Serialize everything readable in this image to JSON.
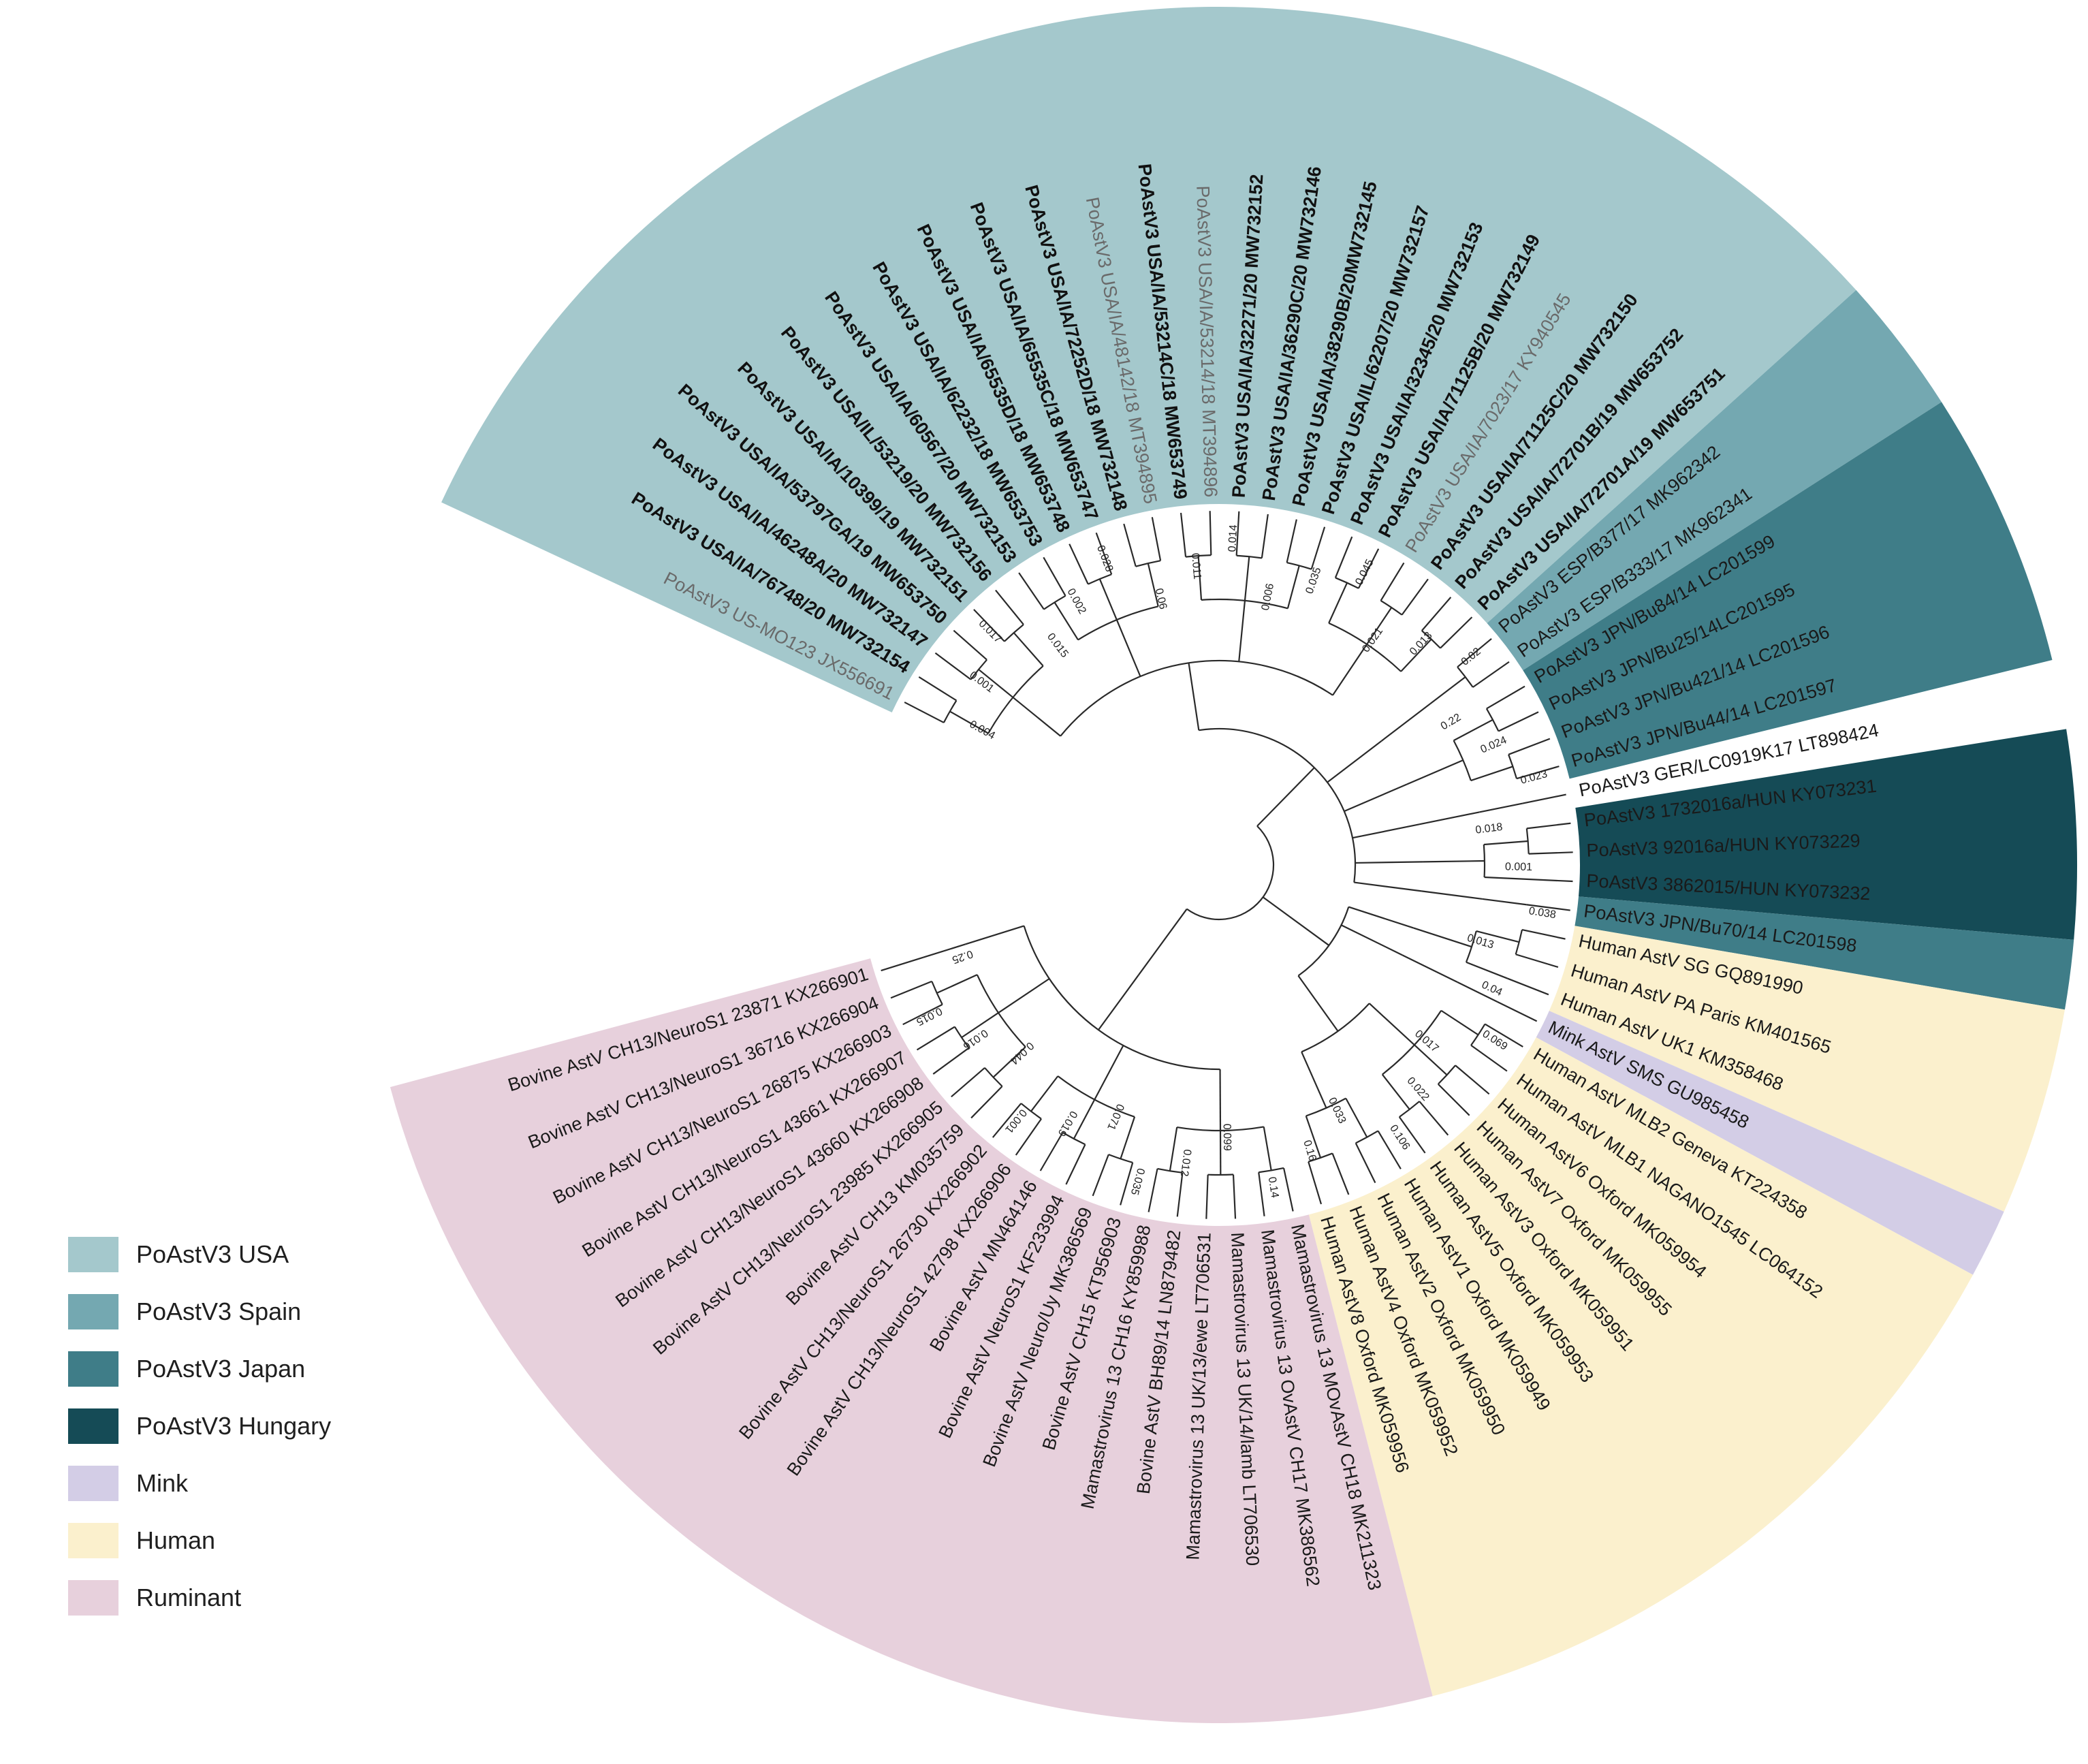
{
  "figure": {
    "type": "circular phylogenetic tree",
    "clades": [
      {
        "key": "usa",
        "label": "PoAstV3 USA",
        "color": "#a4c8cc"
      },
      {
        "key": "spain",
        "label": "PoAstV3 Spain",
        "color": "#74a8b1"
      },
      {
        "key": "japan",
        "label": "PoAstV3 Japan",
        "color": "#3f7d88"
      },
      {
        "key": "hungary",
        "label": "PoAstV3 Hungary",
        "color": "#154b56"
      },
      {
        "key": "mink",
        "label": "Mink",
        "color": "#d3cde6"
      },
      {
        "key": "human",
        "label": "Human",
        "color": "#fbf0cd"
      },
      {
        "key": "ruminant",
        "label": "Ruminant",
        "color": "#e7d0dc"
      }
    ],
    "taxa": [
      {
        "name": "PoAstV3 US-MO123 JX556691",
        "clade": "usa",
        "style": "grey"
      },
      {
        "name": "PoAstV3 USA/IA/76748/20 MW732154",
        "clade": "usa",
        "style": "bold"
      },
      {
        "name": "PoAstV3 USA/IA/46248A/20 MW732147",
        "clade": "usa",
        "style": "bold"
      },
      {
        "name": "PoAstV3 USA/IA/53797GA/19 MW653750",
        "clade": "usa",
        "style": "bold"
      },
      {
        "name": "PoAstV3 USA/IA/10399/19 MW732151",
        "clade": "usa",
        "style": "bold"
      },
      {
        "name": "PoAstV3 USA/IL/53219/20 MW732156",
        "clade": "usa",
        "style": "bold"
      },
      {
        "name": "PoAstV3 USA/IA/60567/20 MW732153",
        "clade": "usa",
        "style": "bold"
      },
      {
        "name": "PoAstV3 USA/IA/62232/18 MW653753",
        "clade": "usa",
        "style": "bold"
      },
      {
        "name": "PoAstV3 USA/IA/65535D/18 MW653748",
        "clade": "usa",
        "style": "bold"
      },
      {
        "name": "PoAstV3 USA/IA/65535C/18 MW653747",
        "clade": "usa",
        "style": "bold"
      },
      {
        "name": "PoAstV3 USA/IA/72252D/18 MW732148",
        "clade": "usa",
        "style": "bold"
      },
      {
        "name": "PoAstV3 USA/IA/48142/18 MT394895",
        "clade": "usa",
        "style": "grey"
      },
      {
        "name": "PoAstV3 USA/IA/53214C/18 MW653749",
        "clade": "usa",
        "style": "bold"
      },
      {
        "name": "PoAstV3 USA/IA/53214/18 MT394896",
        "clade": "usa",
        "style": "grey"
      },
      {
        "name": "PoAstV3 USA/IA/32271/20 MW732152",
        "clade": "usa",
        "style": "bold"
      },
      {
        "name": "PoAstV3 USA/IA/36290C/20 MW732146",
        "clade": "usa",
        "style": "bold"
      },
      {
        "name": "PoAstV3 USA/IA/38290B/20MW732145",
        "clade": "usa",
        "style": "bold"
      },
      {
        "name": "PoAstV3 USA/IL/62207/20 MW732157",
        "clade": "usa",
        "style": "bold"
      },
      {
        "name": "PoAstV3 USA/IA/32345/20 MW732153",
        "clade": "usa",
        "style": "bold"
      },
      {
        "name": "PoAstV3 USA/IA/71125B/20 MW732149",
        "clade": "usa",
        "style": "bold"
      },
      {
        "name": "PoAstV3 USA/IA/7023/17 KY940545",
        "clade": "usa",
        "style": "grey"
      },
      {
        "name": "PoAstV3 USA/IA/71125C/20 MW732150",
        "clade": "usa",
        "style": "bold"
      },
      {
        "name": "PoAstV3 USA/IA/72701B/19 MW653752",
        "clade": "usa",
        "style": "bold"
      },
      {
        "name": "PoAstV3 USA/IA/72701A/19 MW653751",
        "clade": "usa",
        "style": "bold"
      },
      {
        "name": "PoAstV3 ESP/B377/17 MK962342",
        "clade": "spain",
        "style": "normal"
      },
      {
        "name": "PoAstV3 ESP/B333/17 MK962341",
        "clade": "spain",
        "style": "normal"
      },
      {
        "name": "PoAstV3 JPN/Bu84/14 LC201599",
        "clade": "japan",
        "style": "normal"
      },
      {
        "name": "PoAstV3 JPN/Bu25/14LC201595",
        "clade": "japan",
        "style": "normal"
      },
      {
        "name": "PoAstV3 JPN/Bu421/14 LC201596",
        "clade": "japan",
        "style": "normal"
      },
      {
        "name": "PoAstV3 JPN/Bu44/14 LC201597",
        "clade": "japan",
        "style": "normal"
      },
      {
        "name": "PoAstV3 GER/LC0919K17 LT898424",
        "clade": "none",
        "style": "normal"
      },
      {
        "name": "PoAstV3 1732016a/HUN KY073231",
        "clade": "hungary",
        "style": "normal"
      },
      {
        "name": "PoAstV3 92016a/HUN KY073229",
        "clade": "hungary",
        "style": "normal"
      },
      {
        "name": "PoAstV3 3862015/HUN KY073232",
        "clade": "hungary",
        "style": "normal"
      },
      {
        "name": "PoAstV3 JPN/Bu70/14 LC201598",
        "clade": "japan",
        "style": "normal"
      },
      {
        "name": "Human AstV SG GQ891990",
        "clade": "human",
        "style": "normal"
      },
      {
        "name": "Human AstV PA Paris KM401565",
        "clade": "human",
        "style": "normal"
      },
      {
        "name": "Human AstV UK1 KM358468",
        "clade": "human",
        "style": "normal"
      },
      {
        "name": "Mink AstV SMS GU985458",
        "clade": "mink",
        "style": "normal"
      },
      {
        "name": "Human AstV MLB2 Geneva KT224358",
        "clade": "human",
        "style": "normal"
      },
      {
        "name": "Human AstV MLB1 NAGANO1545 LC064152",
        "clade": "human",
        "style": "normal"
      },
      {
        "name": "Human AstV6 Oxford MK059954",
        "clade": "human",
        "style": "normal"
      },
      {
        "name": "Human AstV7 Oxford MK059955",
        "clade": "human",
        "style": "normal"
      },
      {
        "name": "Human AstV3 Oxford MK059951",
        "clade": "human",
        "style": "normal"
      },
      {
        "name": "Human AstV5 Oxford MK059953",
        "clade": "human",
        "style": "normal"
      },
      {
        "name": "Human AstV1 Oxford MK059949",
        "clade": "human",
        "style": "normal"
      },
      {
        "name": "Human AstV2 Oxford MK059950",
        "clade": "human",
        "style": "normal"
      },
      {
        "name": "Human AstV4 Oxford MK059952",
        "clade": "human",
        "style": "normal"
      },
      {
        "name": "Human AstV8 Oxford MK059956",
        "clade": "human",
        "style": "normal"
      },
      {
        "name": "Mamastrovirus 13 MOvAstV CH18 MK211323",
        "clade": "ruminant",
        "style": "normal"
      },
      {
        "name": "Mamastrovirus 13 OvAstV CH17 MK386562",
        "clade": "ruminant",
        "style": "normal"
      },
      {
        "name": "Mamastrovirus 13 UK/14/lamb LT706530",
        "clade": "ruminant",
        "style": "normal"
      },
      {
        "name": "Mamastrovirus 13 UK/13/ewe LT706531",
        "clade": "ruminant",
        "style": "normal"
      },
      {
        "name": "Bovine AstV BH89/14 LN879482",
        "clade": "ruminant",
        "style": "normal"
      },
      {
        "name": "Mamastrovirus 13 CH16 KY859988",
        "clade": "ruminant",
        "style": "normal"
      },
      {
        "name": "Bovine AstV CH15 KT956903",
        "clade": "ruminant",
        "style": "normal"
      },
      {
        "name": "Bovine AstV Neuro/Uy MK386569",
        "clade": "ruminant",
        "style": "normal"
      },
      {
        "name": "Bovine AstV NeuroS1 KF233994",
        "clade": "ruminant",
        "style": "normal"
      },
      {
        "name": "Bovine AstV MN464146",
        "clade": "ruminant",
        "style": "normal"
      },
      {
        "name": "Bovine AstV CH13/NeuroS1 42798 KX266906",
        "clade": "ruminant",
        "style": "normal"
      },
      {
        "name": "Bovine AstV CH13/NeuroS1 26730 KX266902",
        "clade": "ruminant",
        "style": "normal"
      },
      {
        "name": "Bovine AstV CH13 KM035759",
        "clade": "ruminant",
        "style": "normal"
      },
      {
        "name": "Bovine AstV CH13/NeuroS1 23985 KX266905",
        "clade": "ruminant",
        "style": "normal"
      },
      {
        "name": "Bovine AstV CH13/NeuroS1 43660 KX266908",
        "clade": "ruminant",
        "style": "normal"
      },
      {
        "name": "Bovine AstV CH13/NeuroS1 43661 KX266907",
        "clade": "ruminant",
        "style": "normal"
      },
      {
        "name": "Bovine AstV CH13/NeuroS1 26875 KX266903",
        "clade": "ruminant",
        "style": "normal"
      },
      {
        "name": "Bovine AstV CH13/NeuroS1 36716 KX266904",
        "clade": "ruminant",
        "style": "normal"
      },
      {
        "name": "Bovine AstV CH13/NeuroS1 23871 KX266901",
        "clade": "ruminant",
        "style": "normal"
      }
    ],
    "branch_support_labels": [
      "0.004",
      "0.001",
      "0.017",
      "0.015",
      "0.002",
      "0.028",
      "0.06",
      "0.011",
      "0.014",
      "0.006",
      "0.035",
      "0.045",
      "0.021",
      "0.013",
      "0.02",
      "0.22",
      "0.024",
      "0.023",
      "0.018",
      "0.001",
      "0.038",
      "0.013",
      "0.04",
      "0.069",
      "0.017",
      "0.022",
      "0.106",
      "0.033",
      "0.16",
      "0.14",
      "0.099",
      "0.012",
      "0.035",
      "0.071",
      "0.019",
      "0.001",
      "0.044",
      "0.016",
      "0.015",
      "0.25"
    ]
  }
}
